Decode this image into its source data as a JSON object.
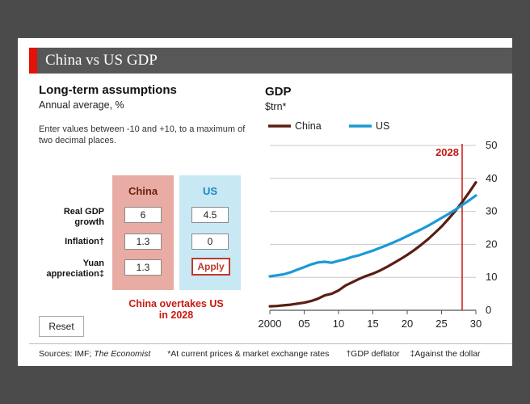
{
  "header": {
    "title": "China vs US GDP"
  },
  "assumptions": {
    "title": "Long-term assumptions",
    "subtitle": "Annual average, %",
    "instructions": "Enter values between -10 and +10, to a maximum of two decimal places.",
    "rows": [
      {
        "label_line1": "Real GDP",
        "label_line2": "growth"
      },
      {
        "label_line1": "Inflation†",
        "label_line2": ""
      },
      {
        "label_line1": "Yuan",
        "label_line2": "appreciation‡"
      }
    ],
    "china": {
      "label": "China",
      "values": [
        "6",
        "1.3",
        "1.3"
      ]
    },
    "us": {
      "label": "US",
      "values": [
        "4.5",
        "0"
      ],
      "apply_label": "Apply"
    },
    "result_line1": "China overtakes US",
    "result_line2": "in 2028",
    "reset_label": "Reset"
  },
  "footer": {
    "sources_prefix": "Sources: IMF; ",
    "sources_publication": "The Economist",
    "note1": "*At current prices & market exchange rates",
    "note2": "†GDP deflator",
    "note3": "‡Against the dollar"
  },
  "colors": {
    "china": "#5a1e14",
    "us": "#1a9ad6",
    "marker": "#c91812",
    "accent": "#e3120b"
  },
  "chart_data": {
    "type": "line",
    "title": "GDP",
    "ylabel": "$trn*",
    "x_tick_labels": [
      "2000",
      "05",
      "10",
      "15",
      "20",
      "25",
      "30"
    ],
    "x_ticks": [
      2000,
      2005,
      2010,
      2015,
      2020,
      2025,
      2030
    ],
    "y_ticks": [
      0,
      10,
      20,
      30,
      40,
      50
    ],
    "xlim": [
      2000,
      2030
    ],
    "ylim": [
      0,
      50
    ],
    "grid": true,
    "legend": "top-left",
    "marker": {
      "x": 2028,
      "label": "2028"
    },
    "series": [
      {
        "name": "China",
        "x": [
          2000,
          2001,
          2002,
          2003,
          2004,
          2005,
          2006,
          2007,
          2008,
          2009,
          2010,
          2011,
          2012,
          2013,
          2014,
          2015,
          2016,
          2017,
          2018,
          2019,
          2020,
          2021,
          2022,
          2023,
          2024,
          2025,
          2026,
          2027,
          2028,
          2029,
          2030
        ],
        "values": [
          1.2,
          1.3,
          1.5,
          1.7,
          2.0,
          2.3,
          2.8,
          3.5,
          4.5,
          5.0,
          6.0,
          7.5,
          8.5,
          9.5,
          10.4,
          11.1,
          12.0,
          13.1,
          14.3,
          15.5,
          16.8,
          18.2,
          19.8,
          21.5,
          23.4,
          25.4,
          27.7,
          30.1,
          32.8,
          35.7,
          38.8
        ]
      },
      {
        "name": "US",
        "x": [
          2000,
          2001,
          2002,
          2003,
          2004,
          2005,
          2006,
          2007,
          2008,
          2009,
          2010,
          2011,
          2012,
          2013,
          2014,
          2015,
          2016,
          2017,
          2018,
          2019,
          2020,
          2021,
          2022,
          2023,
          2024,
          2025,
          2026,
          2027,
          2028,
          2029,
          2030
        ],
        "values": [
          10.3,
          10.6,
          10.9,
          11.5,
          12.3,
          13.1,
          13.9,
          14.5,
          14.7,
          14.4,
          15.0,
          15.5,
          16.2,
          16.7,
          17.4,
          18.1,
          18.9,
          19.7,
          20.6,
          21.5,
          22.5,
          23.5,
          24.5,
          25.6,
          26.8,
          28.0,
          29.2,
          30.5,
          31.9,
          33.3,
          34.8
        ]
      }
    ]
  }
}
